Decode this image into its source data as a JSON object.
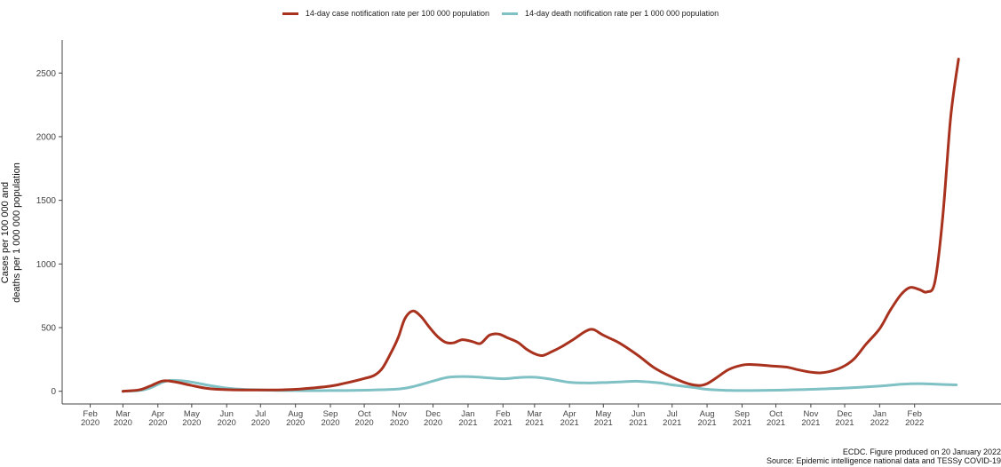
{
  "chart_data": {
    "type": "line",
    "ylabel": [
      "Cases per 100 000 and",
      "deaths per 1 000 000 population"
    ],
    "ylim": [
      -100,
      2760
    ],
    "yticks": [
      0,
      500,
      1000,
      1500,
      2000,
      2500
    ],
    "xlim": [
      "2020-01-15",
      "2022-02-15"
    ],
    "xticks": [
      {
        "date": "2020-02-01",
        "label": [
          "Feb",
          "2020"
        ]
      },
      {
        "date": "2020-03-01",
        "label": [
          "Mar",
          "2020"
        ]
      },
      {
        "date": "2020-04-01",
        "label": [
          "Apr",
          "2020"
        ]
      },
      {
        "date": "2020-05-01",
        "label": [
          "May",
          "2020"
        ]
      },
      {
        "date": "2020-06-01",
        "label": [
          "Jun",
          "2020"
        ]
      },
      {
        "date": "2020-07-01",
        "label": [
          "Jul",
          "2020"
        ]
      },
      {
        "date": "2020-08-01",
        "label": [
          "Aug",
          "2020"
        ]
      },
      {
        "date": "2020-09-01",
        "label": [
          "Sep",
          "2020"
        ]
      },
      {
        "date": "2020-10-01",
        "label": [
          "Oct",
          "2020"
        ]
      },
      {
        "date": "2020-11-01",
        "label": [
          "Nov",
          "2020"
        ]
      },
      {
        "date": "2020-12-01",
        "label": [
          "Dec",
          "2020"
        ]
      },
      {
        "date": "2021-01-01",
        "label": [
          "Jan",
          "2021"
        ]
      },
      {
        "date": "2021-02-01",
        "label": [
          "Feb",
          "2021"
        ]
      },
      {
        "date": "2021-03-01",
        "label": [
          "Mar",
          "2021"
        ]
      },
      {
        "date": "2021-04-01",
        "label": [
          "Apr",
          "2021"
        ]
      },
      {
        "date": "2021-05-01",
        "label": [
          "May",
          "2021"
        ]
      },
      {
        "date": "2021-06-01",
        "label": [
          "Jun",
          "2021"
        ]
      },
      {
        "date": "2021-07-01",
        "label": [
          "Jul",
          "2021"
        ]
      },
      {
        "date": "2021-08-01",
        "label": [
          "Aug",
          "2021"
        ]
      },
      {
        "date": "2021-09-01",
        "label": [
          "Sep",
          "2021"
        ]
      },
      {
        "date": "2021-10-01",
        "label": [
          "Oct",
          "2021"
        ]
      },
      {
        "date": "2021-11-01",
        "label": [
          "Nov",
          "2021"
        ]
      },
      {
        "date": "2021-12-01",
        "label": [
          "Dec",
          "2021"
        ]
      },
      {
        "date": "2022-01-01",
        "label": [
          "Jan",
          "2022"
        ]
      },
      {
        "date": "2022-02-01",
        "label": [
          "Feb",
          "2022"
        ]
      }
    ],
    "grid": false,
    "legend_position": "top",
    "series": [
      {
        "name": "14-day case notification rate per 100 000 population",
        "color": "#a8321e",
        "points": [
          [
            "2020-03-01",
            0
          ],
          [
            "2020-03-15",
            10
          ],
          [
            "2020-03-25",
            40
          ],
          [
            "2020-04-05",
            80
          ],
          [
            "2020-04-15",
            75
          ],
          [
            "2020-05-01",
            45
          ],
          [
            "2020-05-15",
            22
          ],
          [
            "2020-06-01",
            12
          ],
          [
            "2020-06-15",
            10
          ],
          [
            "2020-07-01",
            10
          ],
          [
            "2020-07-15",
            10
          ],
          [
            "2020-08-01",
            15
          ],
          [
            "2020-08-15",
            25
          ],
          [
            "2020-09-01",
            40
          ],
          [
            "2020-09-15",
            65
          ],
          [
            "2020-10-01",
            100
          ],
          [
            "2020-10-10",
            125
          ],
          [
            "2020-10-17",
            180
          ],
          [
            "2020-10-24",
            290
          ],
          [
            "2020-10-31",
            420
          ],
          [
            "2020-11-06",
            570
          ],
          [
            "2020-11-13",
            630
          ],
          [
            "2020-11-20",
            590
          ],
          [
            "2020-11-28",
            500
          ],
          [
            "2020-12-05",
            430
          ],
          [
            "2020-12-12",
            385
          ],
          [
            "2020-12-19",
            380
          ],
          [
            "2020-12-27",
            405
          ],
          [
            "2021-01-05",
            390
          ],
          [
            "2021-01-12",
            375
          ],
          [
            "2021-01-20",
            440
          ],
          [
            "2021-01-28",
            450
          ],
          [
            "2021-02-05",
            420
          ],
          [
            "2021-02-14",
            385
          ],
          [
            "2021-02-22",
            330
          ],
          [
            "2021-03-01",
            295
          ],
          [
            "2021-03-08",
            280
          ],
          [
            "2021-03-16",
            310
          ],
          [
            "2021-03-25",
            350
          ],
          [
            "2021-04-05",
            410
          ],
          [
            "2021-04-15",
            470
          ],
          [
            "2021-04-22",
            485
          ],
          [
            "2021-05-01",
            440
          ],
          [
            "2021-05-15",
            380
          ],
          [
            "2021-06-01",
            280
          ],
          [
            "2021-06-15",
            185
          ],
          [
            "2021-07-01",
            110
          ],
          [
            "2021-07-15",
            60
          ],
          [
            "2021-07-25",
            45
          ],
          [
            "2021-08-01",
            60
          ],
          [
            "2021-08-10",
            110
          ],
          [
            "2021-08-20",
            170
          ],
          [
            "2021-09-01",
            205
          ],
          [
            "2021-09-10",
            210
          ],
          [
            "2021-09-25",
            200
          ],
          [
            "2021-10-10",
            190
          ],
          [
            "2021-10-20",
            170
          ],
          [
            "2021-11-01",
            150
          ],
          [
            "2021-11-10",
            145
          ],
          [
            "2021-11-20",
            160
          ],
          [
            "2021-12-01",
            200
          ],
          [
            "2021-12-10",
            260
          ],
          [
            "2021-12-20",
            370
          ],
          [
            "2022-01-01",
            490
          ],
          [
            "2022-01-10",
            630
          ],
          [
            "2022-01-20",
            760
          ],
          [
            "2022-01-28",
            815
          ],
          [
            "2022-02-05",
            800
          ],
          [
            "2022-02-12",
            780
          ],
          [
            "2022-02-19",
            860
          ],
          [
            "2022-02-26",
            1370
          ],
          [
            "2022-03-05",
            2150
          ],
          [
            "2022-03-12",
            2610
          ]
        ]
      },
      {
        "name": "14-day death notification rate per 1 000 000 population",
        "color": "#7fc1c4",
        "points": [
          [
            "2020-03-01",
            0
          ],
          [
            "2020-03-15",
            5
          ],
          [
            "2020-03-25",
            25
          ],
          [
            "2020-04-05",
            70
          ],
          [
            "2020-04-12",
            85
          ],
          [
            "2020-04-25",
            80
          ],
          [
            "2020-05-05",
            65
          ],
          [
            "2020-05-20",
            40
          ],
          [
            "2020-06-01",
            25
          ],
          [
            "2020-06-15",
            15
          ],
          [
            "2020-07-01",
            10
          ],
          [
            "2020-08-01",
            5
          ],
          [
            "2020-09-01",
            5
          ],
          [
            "2020-10-01",
            8
          ],
          [
            "2020-11-01",
            18
          ],
          [
            "2020-11-15",
            40
          ],
          [
            "2020-12-01",
            80
          ],
          [
            "2020-12-15",
            110
          ],
          [
            "2021-01-01",
            115
          ],
          [
            "2021-01-15",
            108
          ],
          [
            "2021-02-01",
            98
          ],
          [
            "2021-02-15",
            108
          ],
          [
            "2021-03-01",
            110
          ],
          [
            "2021-03-15",
            95
          ],
          [
            "2021-04-01",
            70
          ],
          [
            "2021-04-15",
            65
          ],
          [
            "2021-05-01",
            68
          ],
          [
            "2021-05-20",
            75
          ],
          [
            "2021-06-01",
            78
          ],
          [
            "2021-06-20",
            65
          ],
          [
            "2021-07-01",
            50
          ],
          [
            "2021-07-20",
            30
          ],
          [
            "2021-08-01",
            15
          ],
          [
            "2021-08-20",
            7
          ],
          [
            "2021-09-01",
            5
          ],
          [
            "2021-10-01",
            8
          ],
          [
            "2021-11-01",
            15
          ],
          [
            "2021-12-01",
            25
          ],
          [
            "2022-01-01",
            40
          ],
          [
            "2022-01-20",
            55
          ],
          [
            "2022-02-05",
            60
          ],
          [
            "2022-02-20",
            55
          ],
          [
            "2022-03-10",
            50
          ]
        ]
      }
    ],
    "source": [
      "ECDC. Figure produced on 20 January 2022",
      "Source: Epidemic intelligence national data and TESSy COVID-19"
    ]
  }
}
